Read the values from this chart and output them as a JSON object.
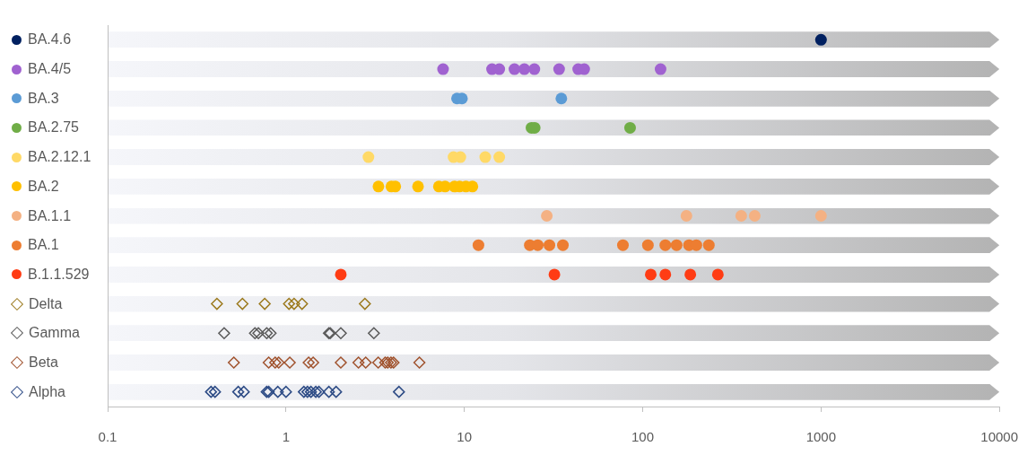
{
  "chart_data": {
    "type": "scatter",
    "orientation": "horizontal",
    "log": "x",
    "xlim": [
      0.1,
      10000
    ],
    "xticks": [
      0.1,
      1,
      10,
      100,
      1000,
      10000
    ],
    "categories": [
      "BA.4.6",
      "BA.4/5",
      "BA.3",
      "BA.2.75",
      "BA.2.12.1",
      "BA.2",
      "BA.1.1",
      "BA.1",
      "B.1.1.529",
      "Delta",
      "Gamma",
      "Beta",
      "Alpha"
    ],
    "series": [
      {
        "color": "#002060",
        "marker": "circle",
        "x": [
          "BA.4.6"
        ],
        "values": [
          1000
        ]
      },
      {
        "color": "#a062d0",
        "marker": "circle",
        "x": [
          "BA.4/5",
          "BA.4/5",
          "BA.4/5",
          "BA.4/5",
          "BA.4/5",
          "BA.4/5",
          "BA.4/5",
          "BA.4/5",
          "BA.4/5",
          "BA.4/5"
        ],
        "values": [
          7.6,
          14.3,
          15.7,
          19.1,
          21.7,
          24.7,
          34,
          43.5,
          47,
          126
        ]
      },
      {
        "color": "#5b9bd5",
        "marker": "circle",
        "x": [
          "BA.3",
          "BA.3",
          "BA.3"
        ],
        "values": [
          9.1,
          9.7,
          35
        ]
      },
      {
        "color": "#70ad47",
        "marker": "circle",
        "x": [
          "BA.2.75",
          "BA.2.75",
          "BA.2.75"
        ],
        "values": [
          23.8,
          24.8,
          85
        ]
      },
      {
        "color": "#ffd966",
        "marker": "circle",
        "x": [
          "BA.2.12.1",
          "BA.2.12.1",
          "BA.2.12.1",
          "BA.2.12.1",
          "BA.2.12.1"
        ],
        "values": [
          2.9,
          8.7,
          9.5,
          13.1,
          15.7
        ]
      },
      {
        "color": "#ffc000",
        "marker": "circle",
        "x": [
          "BA.2",
          "BA.2",
          "BA.2",
          "BA.2",
          "BA.2",
          "BA.2",
          "BA.2",
          "BA.2",
          "BA.2",
          "BA.2"
        ],
        "values": [
          3.3,
          3.9,
          4.1,
          5.5,
          7.2,
          7.8,
          8.8,
          9.4,
          10.2,
          11.1
        ]
      },
      {
        "color": "#f4b183",
        "marker": "circle",
        "x": [
          "BA.1.1",
          "BA.1.1",
          "BA.1.1",
          "BA.1.1",
          "BA.1.1"
        ],
        "values": [
          29,
          176,
          357,
          425,
          1000
        ]
      },
      {
        "color": "#ed7d31",
        "marker": "circle",
        "x": [
          "BA.1",
          "BA.1",
          "BA.1",
          "BA.1",
          "BA.1",
          "BA.1",
          "BA.1",
          "BA.1",
          "BA.1",
          "BA.1",
          "BA.1",
          "BA.1"
        ],
        "values": [
          12,
          23.3,
          25.8,
          30,
          35.7,
          77.5,
          107,
          134,
          155,
          182,
          200,
          235
        ]
      },
      {
        "color": "#ff3c14",
        "marker": "circle",
        "x": [
          "B.1.1.529",
          "B.1.1.529",
          "B.1.1.529",
          "B.1.1.529",
          "B.1.1.529",
          "B.1.1.529"
        ],
        "values": [
          2.03,
          32,
          111,
          134,
          185,
          264
        ]
      },
      {
        "color": "#9c7a1e",
        "marker": "diamond",
        "x": [
          "Delta",
          "Delta",
          "Delta",
          "Delta",
          "Delta",
          "Delta",
          "Delta"
        ],
        "values": [
          0.41,
          0.57,
          0.76,
          1.04,
          1.11,
          1.23,
          2.77
        ]
      },
      {
        "color": "#595959",
        "marker": "diamond",
        "x": [
          "Gamma",
          "Gamma",
          "Gamma",
          "Gamma",
          "Gamma",
          "Gamma",
          "Gamma",
          "Gamma",
          "Gamma"
        ],
        "values": [
          0.45,
          0.67,
          0.7,
          0.78,
          0.82,
          1.74,
          1.77,
          2.03,
          3.11
        ]
      },
      {
        "color": "#a0522d",
        "marker": "diamond",
        "x": [
          "Beta",
          "Beta",
          "Beta",
          "Beta",
          "Beta",
          "Beta",
          "Beta",
          "Beta",
          "Beta",
          "Beta",
          "Beta",
          "Beta",
          "Beta",
          "Beta",
          "Beta",
          "Beta"
        ],
        "values": [
          0.51,
          0.8,
          0.87,
          0.91,
          1.05,
          1.34,
          1.42,
          2.03,
          2.55,
          2.8,
          3.29,
          3.6,
          3.72,
          3.88,
          4.01,
          5.6
        ]
      },
      {
        "color": "#2e4c86",
        "marker": "diamond",
        "x": [
          "Alpha",
          "Alpha",
          "Alpha",
          "Alpha",
          "Alpha",
          "Alpha",
          "Alpha",
          "Alpha",
          "Alpha",
          "Alpha",
          "Alpha",
          "Alpha",
          "Alpha",
          "Alpha",
          "Alpha",
          "Alpha"
        ],
        "values": [
          0.38,
          0.4,
          0.54,
          0.58,
          0.78,
          0.8,
          0.9,
          1.0,
          1.26,
          1.32,
          1.38,
          1.47,
          1.53,
          1.74,
          1.91,
          4.3
        ]
      }
    ]
  }
}
